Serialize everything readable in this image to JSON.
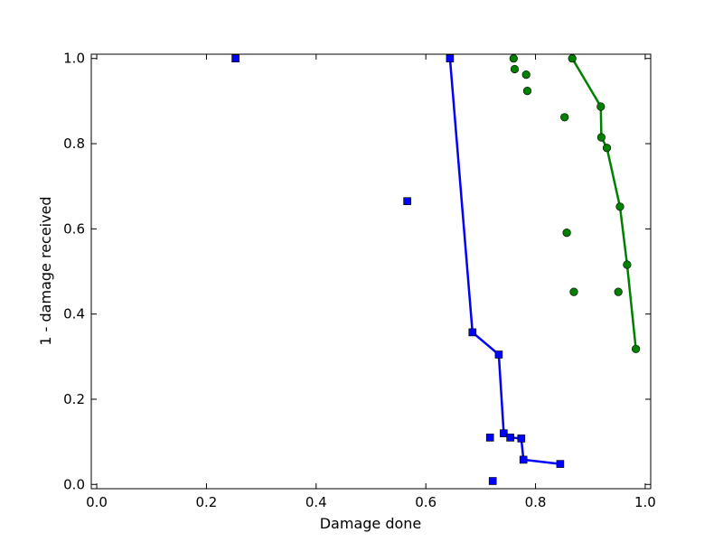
{
  "chart_data": {
    "type": "scatter",
    "title": "",
    "xlabel": "Damage done",
    "ylabel": "1 - damage received",
    "xlim": [
      -0.01,
      1.01
    ],
    "ylim": [
      -0.01,
      1.01
    ],
    "xticks": [
      0.0,
      0.2,
      0.4,
      0.6,
      0.8,
      1.0
    ],
    "yticks": [
      0.0,
      0.2,
      0.4,
      0.6,
      0.8,
      1.0
    ],
    "xtick_labels": [
      "0.0",
      "0.2",
      "0.4",
      "0.6",
      "0.8",
      "1.0"
    ],
    "ytick_labels": [
      "0.0",
      "0.2",
      "0.4",
      "0.6",
      "0.8",
      "1.0"
    ],
    "grid": false,
    "legend": null,
    "series": [
      {
        "marker": "square",
        "color": "#0000ff",
        "points": [
          [
            0.253,
            1.0
          ],
          [
            0.566,
            0.665
          ],
          [
            0.644,
            1.0
          ],
          [
            0.685,
            0.357
          ],
          [
            0.733,
            0.305
          ],
          [
            0.742,
            0.12
          ],
          [
            0.717,
            0.11
          ],
          [
            0.754,
            0.11
          ],
          [
            0.774,
            0.108
          ],
          [
            0.778,
            0.058
          ],
          [
            0.845,
            0.048
          ],
          [
            0.722,
            0.008
          ]
        ],
        "frontier": [
          [
            0.644,
            1.0
          ],
          [
            0.685,
            0.357
          ],
          [
            0.733,
            0.305
          ],
          [
            0.742,
            0.12
          ],
          [
            0.754,
            0.11
          ],
          [
            0.774,
            0.108
          ],
          [
            0.778,
            0.058
          ],
          [
            0.845,
            0.048
          ]
        ]
      },
      {
        "marker": "circle",
        "color": "#008000",
        "points": [
          [
            0.76,
            1.0
          ],
          [
            0.762,
            0.975
          ],
          [
            0.783,
            0.962
          ],
          [
            0.785,
            0.924
          ],
          [
            0.867,
            1.0
          ],
          [
            0.853,
            0.862
          ],
          [
            0.919,
            0.887
          ],
          [
            0.92,
            0.815
          ],
          [
            0.93,
            0.79
          ],
          [
            0.954,
            0.652
          ],
          [
            0.857,
            0.591
          ],
          [
            0.967,
            0.516
          ],
          [
            0.87,
            0.452
          ],
          [
            0.951,
            0.452
          ],
          [
            0.983,
            0.318
          ]
        ],
        "frontier": [
          [
            0.867,
            1.0
          ],
          [
            0.919,
            0.887
          ],
          [
            0.92,
            0.815
          ],
          [
            0.93,
            0.79
          ],
          [
            0.954,
            0.652
          ],
          [
            0.967,
            0.516
          ],
          [
            0.983,
            0.318
          ]
        ]
      }
    ]
  }
}
